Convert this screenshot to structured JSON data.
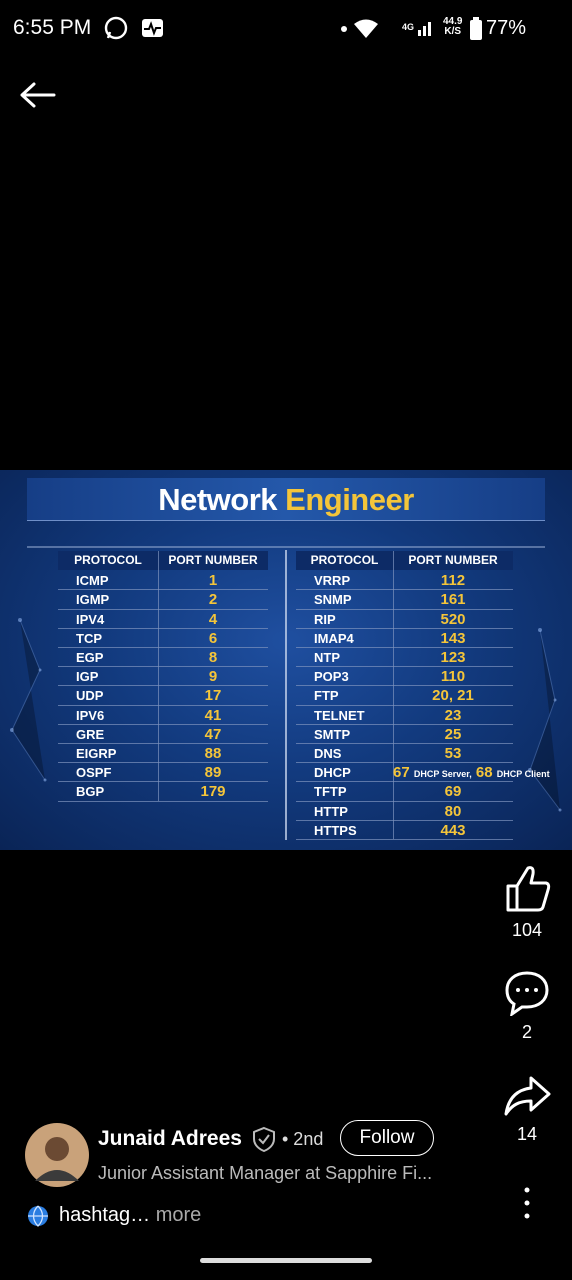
{
  "status_bar": {
    "time": "6:55 PM",
    "network": "4G",
    "speed": "44.9",
    "speed_unit": "K/S",
    "battery": "77%"
  },
  "post_image": {
    "title_first": "Network",
    "title_second": "Engineer",
    "left_table": {
      "headers": [
        "PROTOCOL",
        "PORT NUMBER"
      ],
      "rows": [
        [
          "ICMP",
          "1"
        ],
        [
          "IGMP",
          "2"
        ],
        [
          "IPV4",
          "4"
        ],
        [
          "TCP",
          "6"
        ],
        [
          "EGP",
          "8"
        ],
        [
          "IGP",
          "9"
        ],
        [
          "UDP",
          "17"
        ],
        [
          "IPV6",
          "41"
        ],
        [
          "GRE",
          "47"
        ],
        [
          "EIGRP",
          "88"
        ],
        [
          "OSPF",
          "89"
        ],
        [
          "BGP",
          "179"
        ]
      ]
    },
    "right_table": {
      "headers": [
        "PROTOCOL",
        "PORT NUMBER"
      ],
      "rows": [
        [
          "VRRP",
          "112"
        ],
        [
          "SNMP",
          "161"
        ],
        [
          "RIP",
          "520"
        ],
        [
          "IMAP4",
          "143"
        ],
        [
          "NTP",
          "123"
        ],
        [
          "POP3",
          "110"
        ],
        [
          "FTP",
          "20, 21"
        ],
        [
          "TELNET",
          "23"
        ],
        [
          "SMTP",
          "25"
        ],
        [
          "DNS",
          "53"
        ],
        [
          "DHCP",
          [
            "67",
            "DHCP Server,",
            "68",
            "DHCP Client"
          ]
        ],
        [
          "TFTP",
          "69"
        ],
        [
          "HTTP",
          "80"
        ],
        [
          "HTTPS",
          "443"
        ]
      ]
    }
  },
  "actions": {
    "likes": "104",
    "comments": "2",
    "shares": "14"
  },
  "author": {
    "name": "Junaid Adrees",
    "degree": "• 2nd",
    "follow": "Follow",
    "headline": "Junior Assistant Manager at Sapphire Fi...",
    "caption": "hashtag…",
    "more": "more"
  }
}
